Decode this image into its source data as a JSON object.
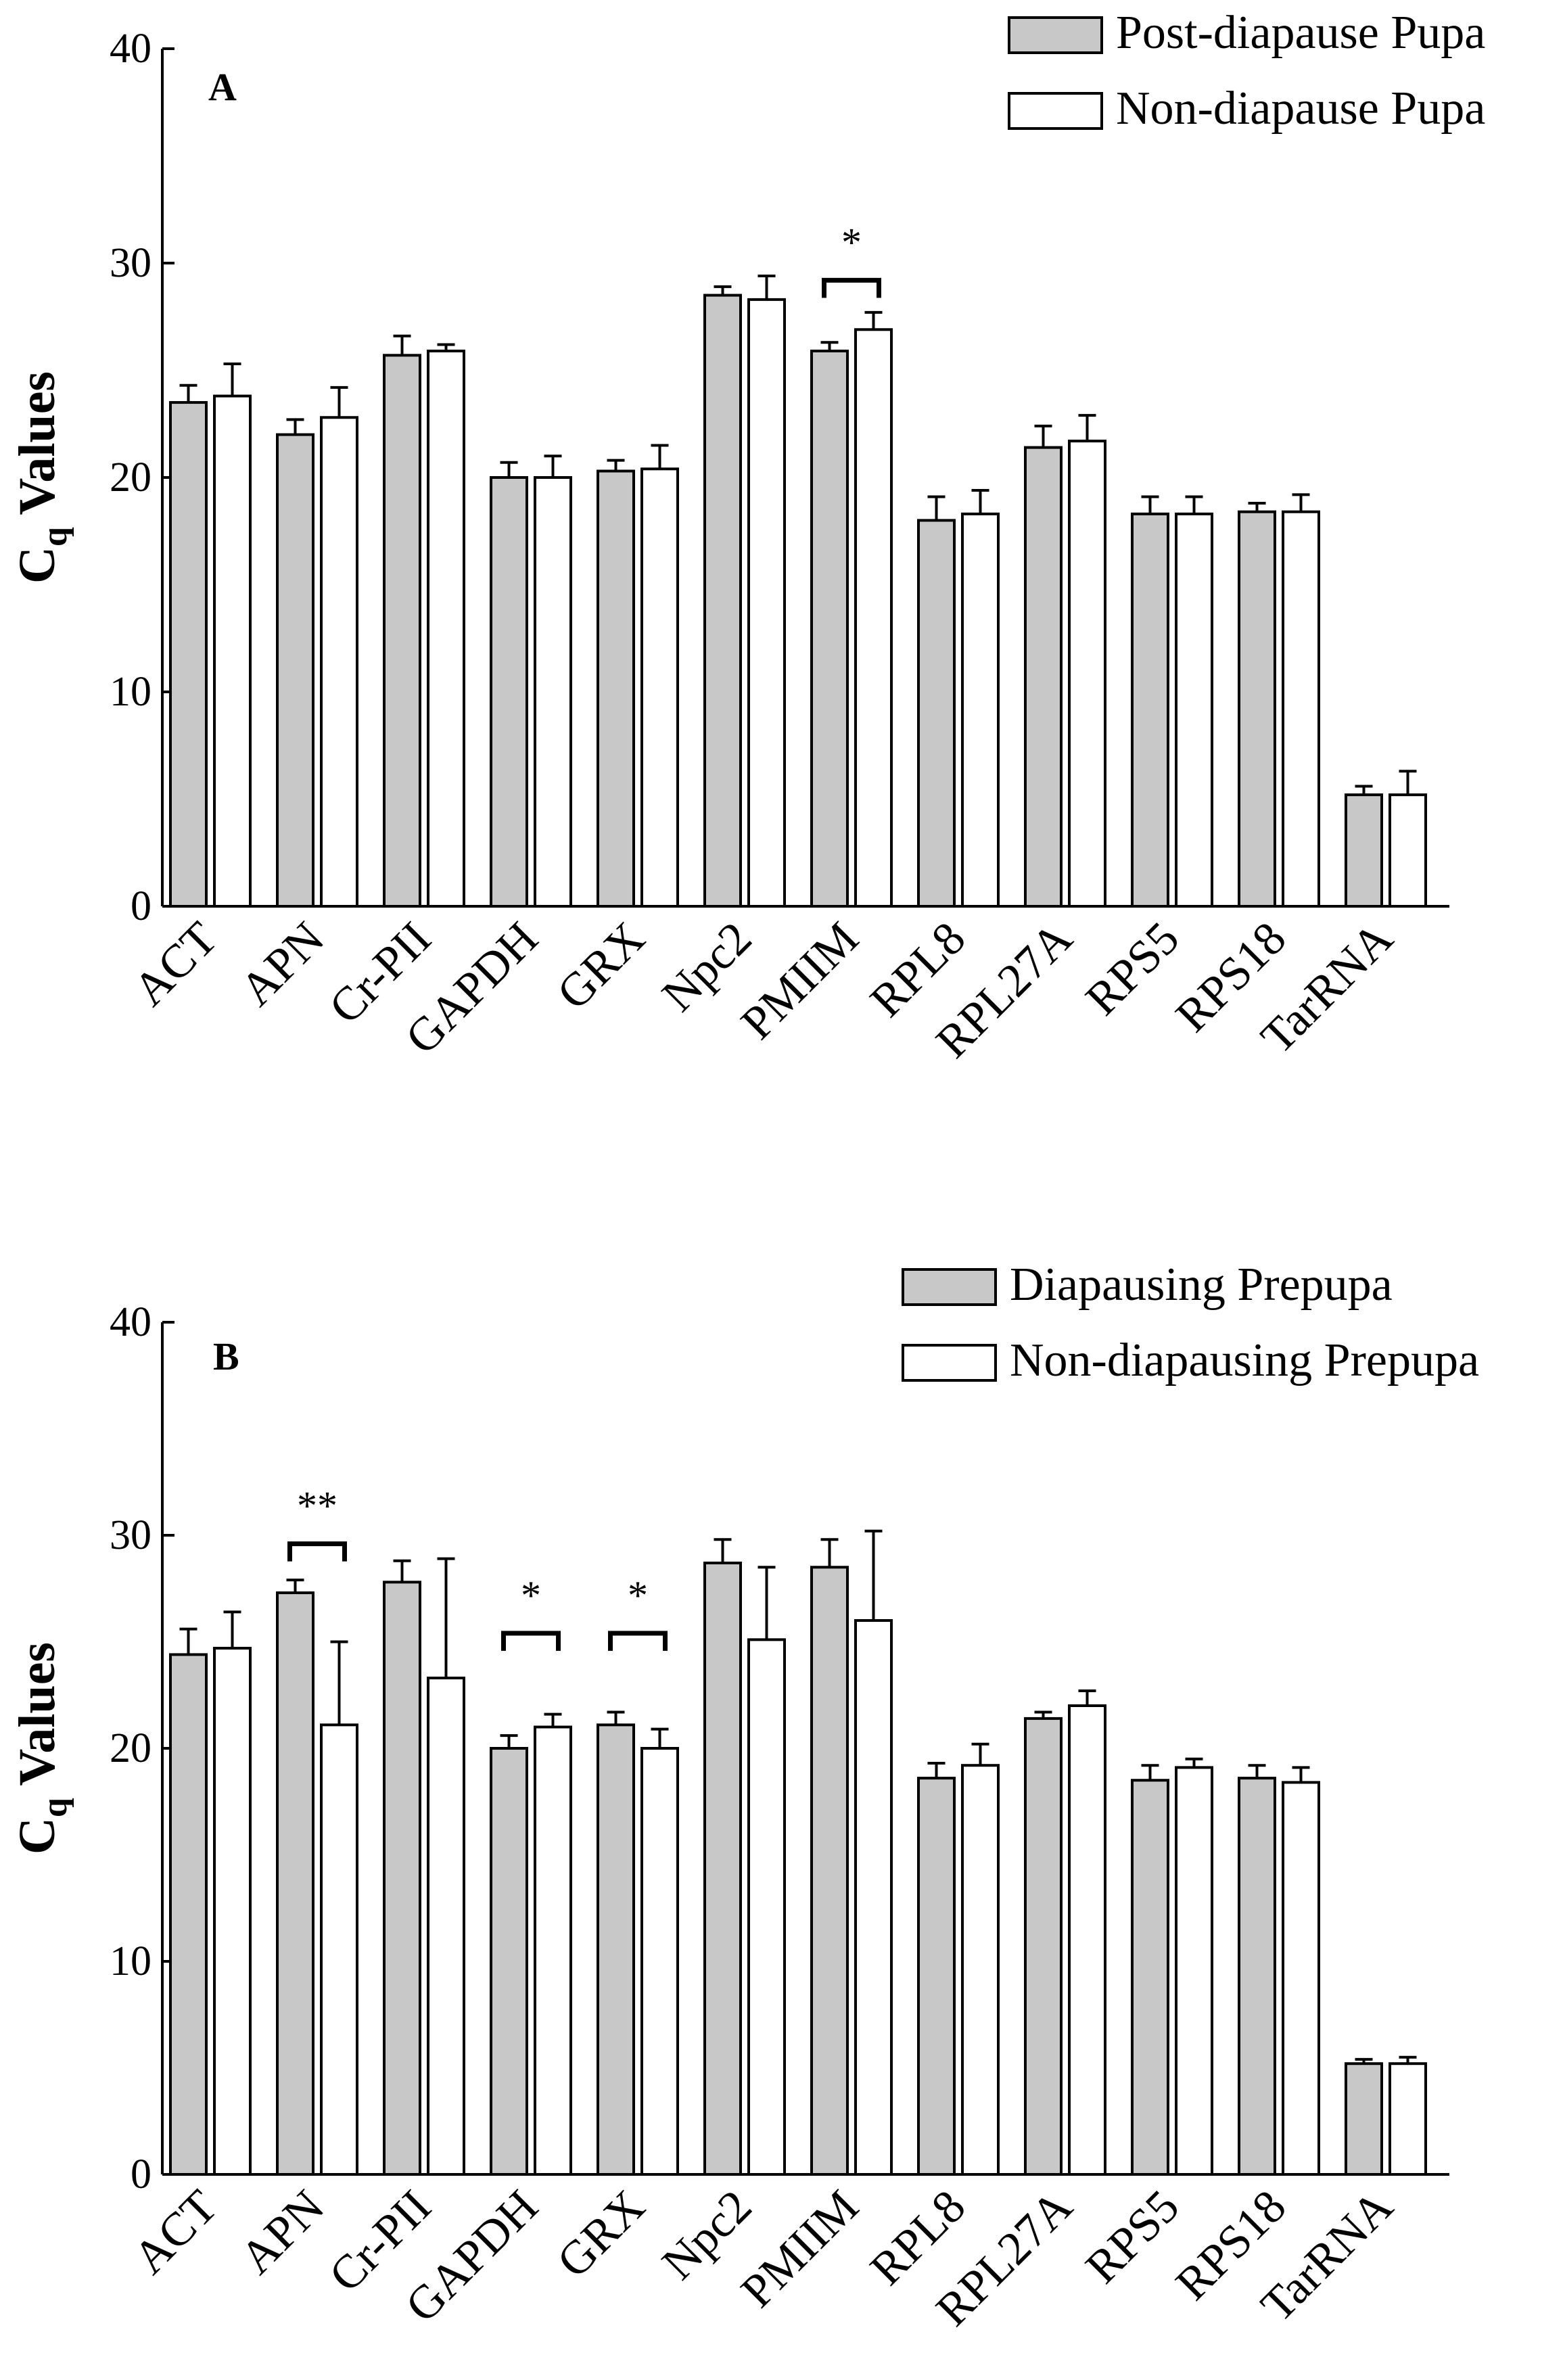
{
  "colors": {
    "series_a": "#c8c8c8",
    "series_b": "#ffffff",
    "stroke": "#000000"
  },
  "chart_data": [
    {
      "type": "bar",
      "panel_label": "A",
      "ylabel": "C",
      "ylabel_sub": "q",
      "ylabel_rest": " Values",
      "ylim": [
        0,
        40
      ],
      "yticks": [
        "0",
        "10",
        "20",
        "30",
        "40"
      ],
      "legend_position": "top-right",
      "categories": [
        "ACT",
        "APN",
        "Cr-PII",
        "GAPDH",
        "GRX",
        "Npc2",
        "PMIIM",
        "RPL8",
        "RPL27A",
        "RPS5",
        "RPS18",
        "TarRNA"
      ],
      "series": [
        {
          "name": "Post-diapause Pupa",
          "values": [
            23.5,
            22.0,
            25.7,
            20.0,
            20.3,
            28.5,
            25.9,
            18.0,
            21.4,
            18.3,
            18.4,
            5.2
          ],
          "errors": [
            0.8,
            0.7,
            0.9,
            0.7,
            0.5,
            0.4,
            0.4,
            1.1,
            1.0,
            0.8,
            0.4,
            0.4
          ]
        },
        {
          "name": "Non-diapause Pupa",
          "values": [
            23.8,
            22.8,
            25.9,
            20.0,
            20.4,
            28.3,
            26.9,
            18.3,
            21.7,
            18.3,
            18.4,
            5.2
          ],
          "errors": [
            1.5,
            1.4,
            0.3,
            1.0,
            1.1,
            1.1,
            0.8,
            1.1,
            1.2,
            0.8,
            0.8,
            1.1
          ]
        }
      ],
      "annotations": [
        {
          "category": "PMIIM",
          "text": "*",
          "y": 29.2
        }
      ]
    },
    {
      "type": "bar",
      "panel_label": "B",
      "ylabel": "C",
      "ylabel_sub": "q",
      "ylabel_rest": " Values",
      "ylim": [
        0,
        40
      ],
      "yticks": [
        "0",
        "10",
        "20",
        "30",
        "40"
      ],
      "legend_position": "top-right",
      "categories": [
        "ACT",
        "APN",
        "Cr-PII",
        "GAPDH",
        "GRX",
        "Npc2",
        "PMIIM",
        "RPL8",
        "RPL27A",
        "RPS5",
        "RPS18",
        "TarRNA"
      ],
      "series": [
        {
          "name": "Diapausing Prepupa",
          "values": [
            24.4,
            27.3,
            27.8,
            20.0,
            21.1,
            28.7,
            28.5,
            18.6,
            21.4,
            18.5,
            18.6,
            5.2
          ],
          "errors": [
            1.2,
            0.6,
            1.0,
            0.6,
            0.6,
            1.1,
            1.3,
            0.7,
            0.3,
            0.7,
            0.6,
            0.2
          ]
        },
        {
          "name": "Non-diapausing Prepupa",
          "values": [
            24.7,
            21.1,
            23.3,
            21.0,
            20.0,
            25.1,
            26.0,
            19.2,
            22.0,
            19.1,
            18.4,
            5.2
          ],
          "errors": [
            1.7,
            3.9,
            5.6,
            0.6,
            0.9,
            3.4,
            4.2,
            1.0,
            0.7,
            0.4,
            0.7,
            0.3
          ]
        }
      ],
      "annotations": [
        {
          "category": "APN",
          "text": "**",
          "y": 29.6
        },
        {
          "category": "GAPDH",
          "text": "*",
          "y": 25.4
        },
        {
          "category": "GRX",
          "text": "*",
          "y": 25.4
        }
      ]
    }
  ]
}
